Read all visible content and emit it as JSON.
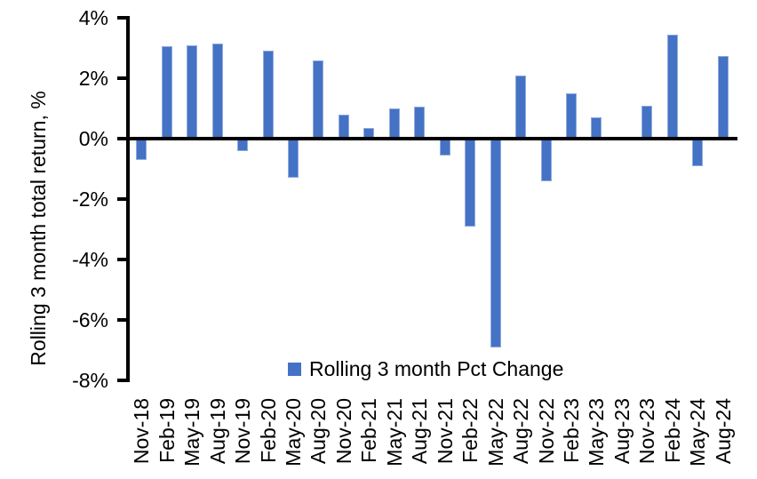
{
  "chart_data": {
    "type": "bar",
    "title": "",
    "ylabel": "Rolling 3 month total return, %",
    "xlabel": "",
    "categories": [
      "Nov-18",
      "Feb-19",
      "May-19",
      "Aug-19",
      "Nov-19",
      "Feb-20",
      "May-20",
      "Aug-20",
      "Nov-20",
      "Feb-21",
      "May-21",
      "Aug-21",
      "Nov-21",
      "Feb-22",
      "May-22",
      "Aug-22",
      "Nov-22",
      "Feb-23",
      "May-23",
      "Aug-23",
      "Nov-23",
      "Feb-24",
      "May-24",
      "Aug-24"
    ],
    "values": [
      -0.7,
      3.05,
      3.1,
      3.15,
      -0.4,
      2.9,
      -1.3,
      2.6,
      0.8,
      0.35,
      1.0,
      1.05,
      -0.55,
      -2.9,
      -6.9,
      2.1,
      -1.4,
      1.5,
      0.7,
      0.0,
      1.1,
      3.45,
      -0.9,
      2.75
    ],
    "ylim": [
      -8,
      4
    ],
    "y_tick_step": 2,
    "y_tick_labels": [
      "4%",
      "2%",
      "0%",
      "-2%",
      "-4%",
      "-6%",
      "-8%"
    ],
    "grid": false,
    "bar_color": "#4472C4",
    "axis_color": "#000000",
    "legend_position": "bottom-center-inside",
    "legend": [
      {
        "label": "Rolling 3 month Pct Change",
        "color": "#4472C4"
      }
    ]
  }
}
